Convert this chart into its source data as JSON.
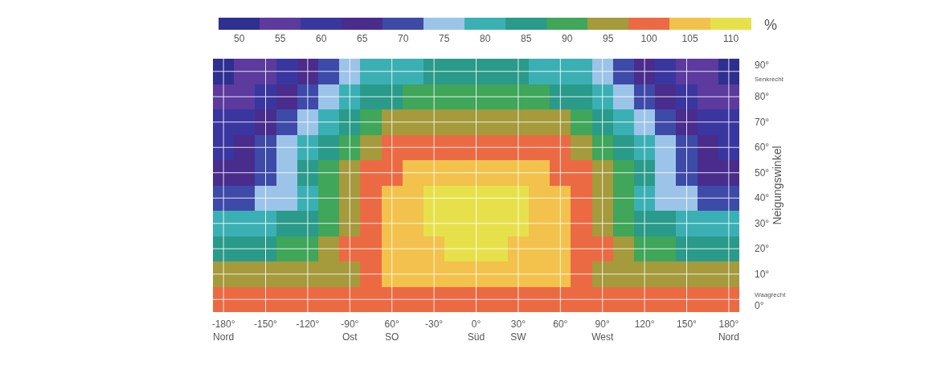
{
  "chart_data": {
    "type": "heatmap",
    "ylabel": "Neigungswinkel",
    "clabel": "%",
    "x": [
      -180,
      -165,
      -150,
      -135,
      -120,
      -105,
      -90,
      -75,
      -60,
      -45,
      -30,
      -15,
      0,
      15,
      30,
      45,
      60,
      75,
      90,
      105,
      120,
      135,
      150,
      165,
      180
    ],
    "xlim": [
      -187.5,
      187.5
    ],
    "xticks": [
      {
        "value": -180,
        "label": "-180°\nNord"
      },
      {
        "value": -150,
        "label": "-150°"
      },
      {
        "value": -120,
        "label": "-120°"
      },
      {
        "value": -90,
        "label": "-90°\nOst"
      },
      {
        "value": -60,
        "label": "60°\nSO"
      },
      {
        "value": -30,
        "label": "-30°"
      },
      {
        "value": 0,
        "label": "0°\nSüd"
      },
      {
        "value": 30,
        "label": "30°\nSW"
      },
      {
        "value": 60,
        "label": "60°"
      },
      {
        "value": 90,
        "label": "90°\nWest"
      },
      {
        "value": 120,
        "label": "120°"
      },
      {
        "value": 150,
        "label": "150°"
      },
      {
        "value": 180,
        "label": "180°\nNord"
      }
    ],
    "ylim": [
      -5,
      95
    ],
    "yticks": [
      {
        "value": 0,
        "label": "Waagrecht\n0°"
      },
      {
        "value": 10,
        "label": "10°"
      },
      {
        "value": 20,
        "label": "20°"
      },
      {
        "value": 30,
        "label": "30°"
      },
      {
        "value": 40,
        "label": "40°"
      },
      {
        "value": 50,
        "label": "50°"
      },
      {
        "value": 60,
        "label": "60°"
      },
      {
        "value": 70,
        "label": "70°"
      },
      {
        "value": 80,
        "label": "80°"
      },
      {
        "value": 90,
        "label": "90°\nSenkrecht"
      }
    ],
    "clim": [
      47.5,
      112.5
    ],
    "cticks": [
      110,
      105,
      100,
      95,
      90,
      85,
      80,
      75,
      70,
      65,
      60,
      55,
      50
    ],
    "colors": [
      "#e6e14a",
      "#f2c24c",
      "#ec6a43",
      "#a59a3c",
      "#3fa65a",
      "#2a9a8a",
      "#3bb0b4",
      "#9cc4e8",
      "#3d4aa8",
      "#4a2c8c",
      "#3a36a0",
      "#5c3a9e",
      "#2f2f8f"
    ],
    "grid": true,
    "cells": [
      [
        50,
        55,
        55,
        60,
        65,
        70,
        75,
        80,
        80,
        80,
        85,
        85,
        85,
        85,
        85,
        80,
        80,
        80,
        75,
        70,
        65,
        60,
        55,
        55,
        50
      ],
      [
        55,
        55,
        60,
        65,
        70,
        75,
        80,
        85,
        85,
        90,
        90,
        90,
        90,
        90,
        90,
        90,
        85,
        85,
        80,
        75,
        70,
        65,
        60,
        55,
        55
      ],
      [
        60,
        60,
        65,
        70,
        75,
        80,
        85,
        90,
        95,
        95,
        95,
        95,
        95,
        95,
        95,
        95,
        95,
        90,
        85,
        80,
        75,
        70,
        65,
        60,
        60
      ],
      [
        60,
        65,
        70,
        75,
        80,
        85,
        90,
        95,
        100,
        100,
        100,
        100,
        100,
        100,
        100,
        100,
        100,
        95,
        90,
        85,
        80,
        75,
        70,
        65,
        60
      ],
      [
        65,
        65,
        70,
        75,
        85,
        90,
        95,
        100,
        100,
        105,
        105,
        105,
        105,
        105,
        105,
        105,
        100,
        100,
        95,
        90,
        85,
        75,
        70,
        65,
        65
      ],
      [
        70,
        70,
        75,
        75,
        80,
        90,
        95,
        100,
        105,
        105,
        110,
        110,
        110,
        110,
        110,
        105,
        105,
        100,
        95,
        90,
        80,
        75,
        75,
        70,
        70
      ],
      [
        80,
        80,
        80,
        85,
        85,
        90,
        95,
        100,
        105,
        105,
        110,
        110,
        110,
        110,
        110,
        105,
        105,
        100,
        95,
        90,
        85,
        85,
        80,
        80,
        80
      ],
      [
        85,
        85,
        85,
        90,
        90,
        95,
        100,
        100,
        105,
        105,
        105,
        110,
        110,
        110,
        105,
        105,
        105,
        100,
        100,
        95,
        90,
        90,
        85,
        85,
        85
      ],
      [
        95,
        95,
        95,
        95,
        95,
        95,
        95,
        100,
        105,
        105,
        105,
        105,
        105,
        105,
        105,
        105,
        105,
        100,
        95,
        95,
        95,
        95,
        95,
        95,
        95
      ],
      [
        100,
        100,
        100,
        100,
        100,
        100,
        100,
        100,
        100,
        100,
        100,
        100,
        100,
        100,
        100,
        100,
        100,
        100,
        100,
        100,
        100,
        100,
        100,
        100,
        100
      ]
    ]
  }
}
